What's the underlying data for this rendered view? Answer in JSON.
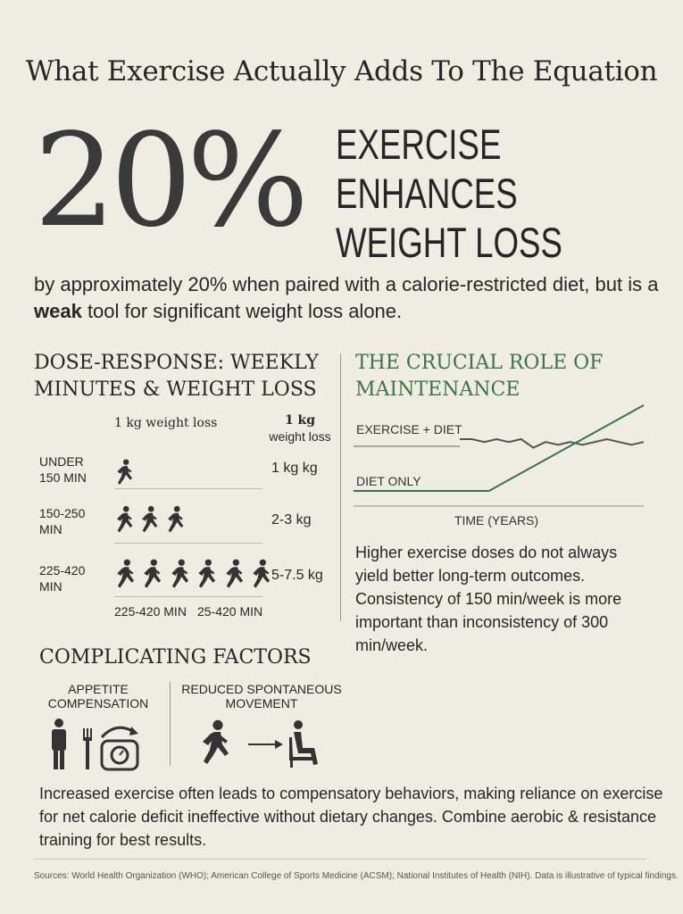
{
  "title": "What Exercise Actually Adds To The Equation",
  "hero": {
    "percent": "20%",
    "headline_lines": [
      "EXERCISE",
      "ENHANCES",
      "WEIGHT LOSS"
    ],
    "lead_before": "by approximately 20% when paired with a calorie-restricted diet, but is a ",
    "lead_bold": "weak",
    "lead_after": " tool for significant weight loss alone."
  },
  "dose": {
    "title_lines": [
      "DOSE-RESPONSE: WEEKLY",
      "MINUTES & WEIGHT LOSS"
    ],
    "col_header_left": "1 kg weight loss",
    "col_header_right_bold": "1 kg",
    "col_header_right": "weight loss",
    "rows": [
      {
        "label_lines": [
          "UNDER",
          "150 MIN"
        ],
        "value": "1 kg kg",
        "figures": 1
      },
      {
        "label_lines": [
          "150-250",
          "MIN"
        ],
        "value": "2-3 kg",
        "figures": 3
      },
      {
        "label_lines": [
          "225-420",
          "MIN"
        ],
        "value": "5-7.5 kg",
        "figures": 6
      }
    ],
    "footer_labels": [
      "225-420 MIN",
      "25-420 MIN"
    ]
  },
  "maintenance": {
    "title_lines": [
      "THE CRUCIAL ROLE OF",
      "MAINTENANCE"
    ],
    "chart_data": {
      "type": "line",
      "xlabel": "TIME (YEARS)",
      "ylabel": "",
      "series": [
        {
          "name": "EXERCISE + DIET",
          "values": [
            5,
            5,
            4,
            5,
            4,
            5,
            2,
            4,
            3,
            4,
            3,
            4,
            5,
            4,
            3,
            4
          ]
        },
        {
          "name": "DIET ONLY",
          "values": [
            0,
            0,
            0,
            0,
            0,
            0,
            0,
            0,
            1,
            2,
            3,
            4,
            5,
            6,
            7,
            8
          ]
        }
      ],
      "colors": {
        "exercise_diet": "#555555",
        "diet_only": "#3f7248"
      }
    },
    "paragraph": "Higher exercise doses do not always yield better long-term outcomes. Consistency of 150 min/week is more important than inconsistency of 300 min/week."
  },
  "complicating": {
    "title": "COMPLICATING FACTORS",
    "factors": [
      {
        "label_lines": [
          "APPETITE",
          "COMPENSATION"
        ],
        "icons": [
          "person-icon",
          "fork-icon",
          "scale-icon"
        ]
      },
      {
        "label_lines": [
          "REDUCED SPONTANEOUS",
          "MOVEMENT"
        ],
        "icons": [
          "walking-person-icon",
          "arrow-right-icon",
          "seated-person-icon"
        ]
      }
    ],
    "paragraph": "Increased exercise often leads to compensatory behaviors, making reliance on exercise for net calorie deficit ineffective without dietary changes. Combine aerobic & resistance training for best results."
  },
  "sources": "Sources: World Health Organization (WHO); American College of Sports Medicine (ACSM); National Institutes of Health (NIH). Data is illustrative of typical findings."
}
